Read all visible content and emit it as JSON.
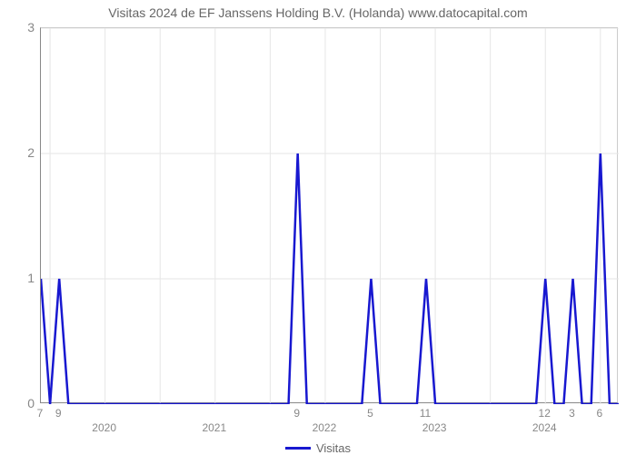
{
  "chart": {
    "type": "line",
    "title": "Visitas 2024 de EF Janssens Holding B.V. (Holanda) www.datocapital.com",
    "title_fontsize": 14,
    "title_color": "#666666",
    "background_color": "#ffffff",
    "plot_border_color": "#888888",
    "grid_color": "#e6e6e6",
    "y": {
      "lim": [
        0,
        3
      ],
      "ticks": [
        0,
        1,
        2,
        3
      ],
      "tick_labels": [
        "0",
        "1",
        "2",
        "3"
      ],
      "grid": true,
      "tick_label_color": "#888888",
      "tick_label_fontsize": 14
    },
    "x": {
      "n_points": 64,
      "year_ticks": [
        {
          "idx": 7,
          "label": "2020"
        },
        {
          "idx": 19,
          "label": "2021"
        },
        {
          "idx": 31,
          "label": "2022"
        },
        {
          "idx": 43,
          "label": "2023"
        },
        {
          "idx": 55,
          "label": "2024"
        }
      ],
      "month_gridlines_idx": [
        1,
        7,
        13,
        19,
        25,
        31,
        37,
        43,
        49,
        55,
        61
      ],
      "point_labels": [
        {
          "idx": 0,
          "label": "7"
        },
        {
          "idx": 2,
          "label": "9"
        },
        {
          "idx": 28,
          "label": "9"
        },
        {
          "idx": 36,
          "label": "5"
        },
        {
          "idx": 42,
          "label": "11"
        },
        {
          "idx": 55,
          "label": "12"
        },
        {
          "idx": 58,
          "label": "3"
        },
        {
          "idx": 61,
          "label": "6"
        }
      ],
      "tick_label_color": "#888888",
      "tick_label_fontsize": 12
    },
    "series": {
      "name": "Visitas",
      "color": "#1818d0",
      "line_width": 2.5,
      "values": [
        1,
        0,
        1,
        0,
        0,
        0,
        0,
        0,
        0,
        0,
        0,
        0,
        0,
        0,
        0,
        0,
        0,
        0,
        0,
        0,
        0,
        0,
        0,
        0,
        0,
        0,
        0,
        0,
        2,
        0,
        0,
        0,
        0,
        0,
        0,
        0,
        1,
        0,
        0,
        0,
        0,
        0,
        1,
        0,
        0,
        0,
        0,
        0,
        0,
        0,
        0,
        0,
        0,
        0,
        0,
        1,
        0,
        0,
        1,
        0,
        0,
        2,
        0,
        0
      ]
    },
    "legend": {
      "label": "Visitas",
      "color": "#1818d0",
      "text_color": "#666666",
      "fontsize": 13
    }
  }
}
